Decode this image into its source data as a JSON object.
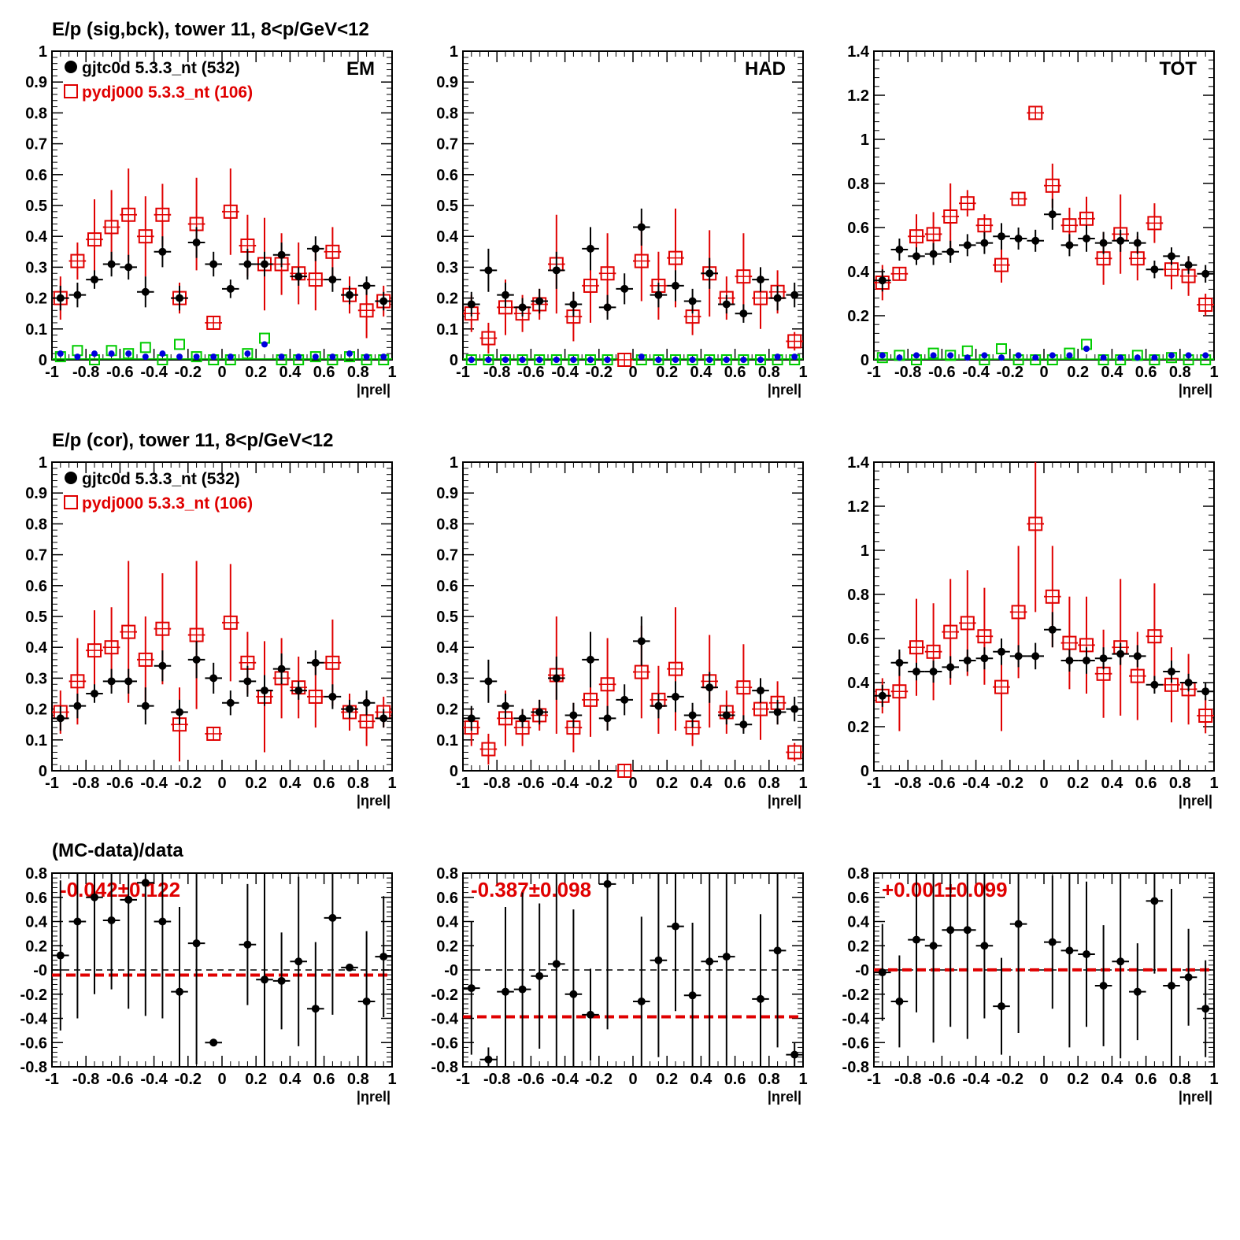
{
  "colors": {
    "data": "#000000",
    "mc": "#e00000",
    "bck_data": "#0000dd",
    "bck_mc": "#00cc00"
  },
  "row_titles": [
    "E/p (sig,bck), tower 11,  8<p/GeV<12",
    "E/p (cor), tower 11,  8<p/GeV<12",
    "(MC-data)/data"
  ],
  "legend": {
    "data_label": "gjtc0d 5.3.3_nt (532)",
    "mc_label": "pydj000 5.3.3_nt (106)"
  },
  "column_tags": [
    "EM",
    "HAD",
    "TOT"
  ],
  "xaxis_label": "|ηrel|",
  "ratio_labels": [
    "-0.042±0.122",
    "-0.387±0.098",
    "+0.001±0.099"
  ],
  "chart_data": {
    "type": "scatter",
    "x": [
      -0.95,
      -0.85,
      -0.75,
      -0.65,
      -0.55,
      -0.45,
      -0.35,
      -0.25,
      -0.15,
      -0.05,
      0.05,
      0.15,
      0.25,
      0.35,
      0.45,
      0.55,
      0.65,
      0.75,
      0.85,
      0.95
    ],
    "xlim": [
      -1,
      1
    ],
    "xticks": [
      "-1",
      "-0.8",
      "-0.6",
      "-0.4",
      "-0.2",
      "0",
      "0.2",
      "0.4",
      "0.6",
      "0.8",
      "1"
    ],
    "panels": [
      {
        "row": 0,
        "col": 0,
        "tag": "EM",
        "legend": true,
        "ylim": [
          0,
          1
        ],
        "yticks": [
          "0",
          "0.1",
          "0.2",
          "0.3",
          "0.4",
          "0.5",
          "0.6",
          "0.7",
          "0.8",
          "0.9",
          "1"
        ],
        "data": [
          0.2,
          0.21,
          0.26,
          0.31,
          0.3,
          0.22,
          0.35,
          0.2,
          0.38,
          0.31,
          0.23,
          0.31,
          0.31,
          0.34,
          0.27,
          0.36,
          0.26,
          0.21,
          0.24,
          0.19
        ],
        "data_err": [
          0.04,
          0.04,
          0.03,
          0.04,
          0.04,
          0.05,
          0.05,
          0.04,
          0.05,
          0.04,
          0.03,
          0.05,
          0.04,
          0.04,
          0.03,
          0.04,
          0.04,
          0.03,
          0.03,
          0.03
        ],
        "mc": [
          0.2,
          0.32,
          0.39,
          0.43,
          0.47,
          0.4,
          0.47,
          0.2,
          0.44,
          0.12,
          0.48,
          0.37,
          0.31,
          0.31,
          0.28,
          0.26,
          0.35,
          0.21,
          0.16,
          0.19
        ],
        "mc_err": [
          0.07,
          0.06,
          0.13,
          0.12,
          0.15,
          0.13,
          0.1,
          0.05,
          0.15,
          0.0,
          0.14,
          0.1,
          0.15,
          0.1,
          0.1,
          0.1,
          0.08,
          0.06,
          0.09,
          0.05
        ],
        "bck_data": [
          0.02,
          0.01,
          0.02,
          0.02,
          0.02,
          0.01,
          0.02,
          0.01,
          0.01,
          0.01,
          0.01,
          0.02,
          0.05,
          0.01,
          0.01,
          0.01,
          0.01,
          0.02,
          0.01,
          0.01
        ],
        "bck_mc": [
          0.01,
          0.03,
          0.0,
          0.03,
          0.02,
          0.04,
          0.0,
          0.05,
          0.01,
          0.0,
          0.0,
          0.02,
          0.07,
          0.0,
          0.0,
          0.01,
          0.0,
          0.01,
          0.0,
          0.0
        ]
      },
      {
        "row": 0,
        "col": 1,
        "tag": "HAD",
        "legend": false,
        "ylim": [
          0,
          1
        ],
        "yticks": [
          "0",
          "0.1",
          "0.2",
          "0.3",
          "0.4",
          "0.5",
          "0.6",
          "0.7",
          "0.8",
          "0.9",
          "1"
        ],
        "data": [
          0.18,
          0.29,
          0.21,
          0.17,
          0.19,
          0.29,
          0.18,
          0.36,
          0.17,
          0.23,
          0.43,
          0.21,
          0.24,
          0.19,
          0.28,
          0.18,
          0.15,
          0.26,
          0.2,
          0.21
        ],
        "data_err": [
          0.04,
          0.07,
          0.04,
          0.03,
          0.04,
          0.06,
          0.04,
          0.07,
          0.04,
          0.05,
          0.06,
          0.04,
          0.05,
          0.04,
          0.05,
          0.03,
          0.03,
          0.04,
          0.04,
          0.04
        ],
        "mc": [
          0.15,
          0.07,
          0.17,
          0.15,
          0.18,
          0.31,
          0.14,
          0.24,
          0.28,
          0.0,
          0.32,
          0.24,
          0.33,
          0.14,
          0.28,
          0.2,
          0.27,
          0.2,
          0.22,
          0.06
        ],
        "mc_err": [
          0.06,
          0.05,
          0.09,
          0.06,
          0.05,
          0.16,
          0.08,
          0.12,
          0.13,
          0.0,
          0.13,
          0.11,
          0.16,
          0.06,
          0.14,
          0.07,
          0.14,
          0.1,
          0.07,
          0.03
        ],
        "bck_data": [
          0.0,
          0.0,
          0.0,
          0.0,
          0.0,
          0.0,
          0.0,
          0.0,
          0.0,
          0.0,
          0.01,
          0.0,
          0.0,
          0.0,
          0.0,
          0.0,
          0.0,
          0.0,
          0.01,
          0.01
        ],
        "bck_mc": [
          0.0,
          0.0,
          0.0,
          0.0,
          0.0,
          0.0,
          0.0,
          0.0,
          0.0,
          0.0,
          0.0,
          0.0,
          0.0,
          0.0,
          0.0,
          0.0,
          0.0,
          0.0,
          0.0,
          0.0
        ]
      },
      {
        "row": 0,
        "col": 2,
        "tag": "TOT",
        "legend": false,
        "ylim": [
          0,
          1.4
        ],
        "yticks": [
          "0",
          "0.2",
          "0.4",
          "0.6",
          "0.8",
          "1",
          "1.2",
          "1.4"
        ],
        "data": [
          0.36,
          0.5,
          0.47,
          0.48,
          0.49,
          0.52,
          0.53,
          0.56,
          0.55,
          0.54,
          0.66,
          0.52,
          0.55,
          0.53,
          0.54,
          0.53,
          0.41,
          0.47,
          0.43,
          0.39
        ],
        "data_err": [
          0.05,
          0.05,
          0.04,
          0.05,
          0.05,
          0.05,
          0.05,
          0.06,
          0.05,
          0.05,
          0.07,
          0.05,
          0.06,
          0.05,
          0.05,
          0.05,
          0.04,
          0.04,
          0.04,
          0.04
        ],
        "mc": [
          0.35,
          0.39,
          0.56,
          0.57,
          0.65,
          0.71,
          0.61,
          0.43,
          0.73,
          1.12,
          0.79,
          0.61,
          0.64,
          0.46,
          0.57,
          0.46,
          0.62,
          0.41,
          0.38,
          0.25
        ],
        "mc_err": [
          0.08,
          0.0,
          0.1,
          0.1,
          0.15,
          0.06,
          0.05,
          0.08,
          0.0,
          0.0,
          0.1,
          0.08,
          0.1,
          0.12,
          0.18,
          0.1,
          0.09,
          0.09,
          0.09,
          0.05
        ],
        "bck_data": [
          0.02,
          0.01,
          0.02,
          0.02,
          0.02,
          0.01,
          0.02,
          0.01,
          0.02,
          0.01,
          0.02,
          0.02,
          0.05,
          0.01,
          0.01,
          0.01,
          0.01,
          0.02,
          0.02,
          0.02
        ],
        "bck_mc": [
          0.01,
          0.02,
          0.0,
          0.03,
          0.02,
          0.04,
          0.0,
          0.05,
          0.0,
          0.0,
          0.0,
          0.03,
          0.07,
          0.0,
          0.0,
          0.02,
          0.0,
          0.01,
          0.0,
          0.0
        ]
      },
      {
        "row": 1,
        "col": 0,
        "tag": "",
        "legend": true,
        "ylim": [
          0,
          1
        ],
        "yticks": [
          "0",
          "0.1",
          "0.2",
          "0.3",
          "0.4",
          "0.5",
          "0.6",
          "0.7",
          "0.8",
          "0.9",
          "1"
        ],
        "data": [
          0.17,
          0.21,
          0.25,
          0.29,
          0.29,
          0.21,
          0.34,
          0.19,
          0.36,
          0.3,
          0.22,
          0.29,
          0.26,
          0.33,
          0.26,
          0.35,
          0.24,
          0.2,
          0.22,
          0.17
        ],
        "data_err": [
          0.04,
          0.04,
          0.03,
          0.04,
          0.04,
          0.06,
          0.05,
          0.04,
          0.06,
          0.05,
          0.04,
          0.05,
          0.05,
          0.05,
          0.03,
          0.04,
          0.04,
          0.03,
          0.04,
          0.03
        ],
        "mc": [
          0.19,
          0.29,
          0.39,
          0.4,
          0.45,
          0.36,
          0.46,
          0.15,
          0.44,
          0.12,
          0.48,
          0.35,
          0.24,
          0.3,
          0.27,
          0.24,
          0.35,
          0.19,
          0.16,
          0.19
        ],
        "mc_err": [
          0.07,
          0.14,
          0.13,
          0.13,
          0.23,
          0.14,
          0.18,
          0.12,
          0.24,
          0.0,
          0.19,
          0.1,
          0.18,
          0.13,
          0.1,
          0.1,
          0.14,
          0.06,
          0.08,
          0.05
        ]
      },
      {
        "row": 1,
        "col": 1,
        "tag": "",
        "legend": false,
        "ylim": [
          0,
          1
        ],
        "yticks": [
          "0",
          "0.1",
          "0.2",
          "0.3",
          "0.4",
          "0.5",
          "0.6",
          "0.7",
          "0.8",
          "0.9",
          "1"
        ],
        "data": [
          0.17,
          0.29,
          0.21,
          0.17,
          0.19,
          0.3,
          0.18,
          0.36,
          0.17,
          0.23,
          0.42,
          0.21,
          0.24,
          0.18,
          0.27,
          0.18,
          0.15,
          0.26,
          0.19,
          0.2
        ],
        "data_err": [
          0.04,
          0.07,
          0.04,
          0.03,
          0.04,
          0.07,
          0.04,
          0.09,
          0.04,
          0.05,
          0.08,
          0.04,
          0.05,
          0.04,
          0.05,
          0.03,
          0.03,
          0.04,
          0.04,
          0.04
        ],
        "mc": [
          0.14,
          0.07,
          0.17,
          0.14,
          0.18,
          0.31,
          0.14,
          0.23,
          0.28,
          0.0,
          0.32,
          0.23,
          0.33,
          0.14,
          0.29,
          0.19,
          0.27,
          0.2,
          0.22,
          0.06
        ],
        "mc_err": [
          0.06,
          0.05,
          0.09,
          0.06,
          0.05,
          0.19,
          0.08,
          0.12,
          0.15,
          0.0,
          0.15,
          0.11,
          0.2,
          0.06,
          0.15,
          0.07,
          0.14,
          0.1,
          0.07,
          0.03
        ]
      },
      {
        "row": 1,
        "col": 2,
        "tag": "",
        "legend": false,
        "ylim": [
          0,
          1.4
        ],
        "yticks": [
          "0",
          "0.2",
          "0.4",
          "0.6",
          "0.8",
          "1",
          "1.2",
          "1.4"
        ],
        "data": [
          0.34,
          0.49,
          0.45,
          0.45,
          0.47,
          0.5,
          0.51,
          0.54,
          0.52,
          0.52,
          0.64,
          0.5,
          0.5,
          0.51,
          0.53,
          0.52,
          0.39,
          0.45,
          0.4,
          0.36
        ],
        "data_err": [
          0.05,
          0.06,
          0.04,
          0.05,
          0.05,
          0.05,
          0.05,
          0.06,
          0.05,
          0.06,
          0.08,
          0.05,
          0.06,
          0.05,
          0.05,
          0.05,
          0.04,
          0.05,
          0.04,
          0.04
        ],
        "mc": [
          0.34,
          0.36,
          0.56,
          0.54,
          0.63,
          0.67,
          0.61,
          0.38,
          0.72,
          1.12,
          0.79,
          0.58,
          0.57,
          0.44,
          0.56,
          0.43,
          0.61,
          0.39,
          0.37,
          0.25
        ],
        "mc_err": [
          0.08,
          0.18,
          0.22,
          0.22,
          0.24,
          0.24,
          0.22,
          0.2,
          0.3,
          0.4,
          0.23,
          0.21,
          0.22,
          0.2,
          0.31,
          0.2,
          0.24,
          0.17,
          0.16,
          0.08
        ]
      },
      {
        "row": 2,
        "col": 0,
        "tag": "",
        "legend": false,
        "ylim": [
          -0.8,
          0.8
        ],
        "yticks": [
          "-0.8",
          "-0.6",
          "-0.4",
          "-0.2",
          "-0",
          "0.2",
          "0.4",
          "0.6",
          "0.8"
        ],
        "data": [
          0.12,
          0.4,
          0.6,
          0.41,
          0.58,
          0.72,
          0.4,
          -0.18,
          0.22,
          -0.6,
          null,
          0.21,
          -0.08,
          -0.09,
          0.07,
          -0.32,
          0.43,
          0.02,
          -0.26,
          0.11
        ],
        "data_err": [
          0.62,
          0.8,
          0.8,
          0.57,
          0.9,
          1.1,
          0.8,
          0.7,
          1.0,
          0.0,
          null,
          0.5,
          1.0,
          0.4,
          0.7,
          0.55,
          0.8,
          0.0,
          0.58,
          0.5
        ],
        "fit": -0.042
      },
      {
        "row": 2,
        "col": 1,
        "tag": "",
        "legend": false,
        "ylim": [
          -0.8,
          0.8
        ],
        "yticks": [
          "-0.8",
          "-0.6",
          "-0.4",
          "-0.2",
          "-0",
          "0.2",
          "0.4",
          "0.6",
          "0.8"
        ],
        "data": [
          -0.15,
          -0.74,
          -0.18,
          -0.16,
          -0.05,
          0.05,
          -0.2,
          -0.37,
          0.71,
          null,
          -0.26,
          0.08,
          0.36,
          -0.21,
          0.07,
          0.11,
          null,
          -0.24,
          0.16,
          -0.7
        ],
        "data_err": [
          0.55,
          0.1,
          0.7,
          0.8,
          0.6,
          0.9,
          0.7,
          0.38,
          1.2,
          null,
          0.7,
          0.8,
          0.7,
          0.6,
          0.9,
          0.9,
          null,
          0.7,
          0.8,
          0.1
        ],
        "fit": -0.387
      },
      {
        "row": 2,
        "col": 2,
        "tag": "",
        "legend": false,
        "ylim": [
          -0.8,
          0.8
        ],
        "yticks": [
          "-0.8",
          "-0.6",
          "-0.4",
          "-0.2",
          "-0",
          "0.2",
          "0.4",
          "0.6",
          "0.8"
        ],
        "data": [
          -0.02,
          -0.26,
          0.25,
          0.2,
          0.33,
          0.33,
          0.2,
          -0.3,
          0.38,
          null,
          0.23,
          0.16,
          0.13,
          -0.13,
          0.07,
          -0.18,
          0.57,
          -0.13,
          -0.06,
          -0.32
        ],
        "data_err": [
          0.4,
          0.38,
          0.6,
          0.8,
          0.8,
          0.9,
          0.6,
          0.4,
          0.9,
          null,
          0.55,
          0.8,
          0.6,
          0.5,
          0.8,
          0.4,
          0.6,
          0.8,
          0.4,
          0.4
        ],
        "fit": 0.001
      }
    ]
  }
}
